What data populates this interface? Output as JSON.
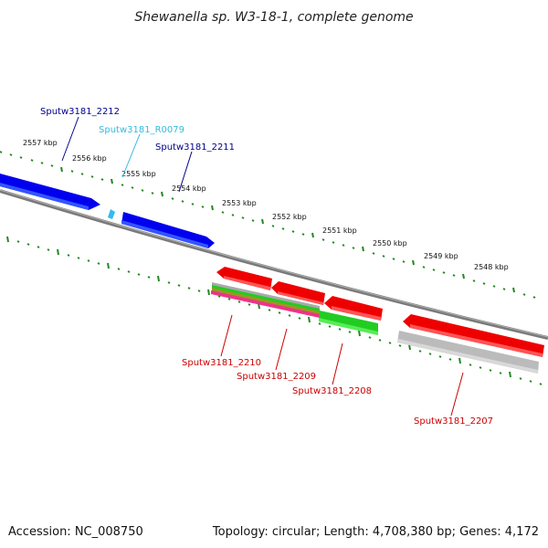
{
  "title": "Shewanella sp. W3-18-1, complete genome",
  "accession_text": "Accession: NC_008750",
  "summary_text": "Topology: circular; Length: 4,708,380 bp; Genes: 4,172",
  "colors": {
    "forward_gene": "#0000ee",
    "forward_rna": "#33bbee",
    "reverse_gene": "#ee0000",
    "reverse_cds": "#22cc22",
    "reverse_other": "#bbbbbb",
    "backbone": "#808080",
    "tick": "#228822",
    "label_forward": "#000088",
    "label_reverse": "#cc0000",
    "label_rna": "#33bbdd"
  },
  "ruler": [
    "2557 kbp",
    "2556 kbp",
    "2555 kbp",
    "2554 kbp",
    "2553 kbp",
    "2552 kbp",
    "2551 kbp",
    "2550 kbp",
    "2549 kbp",
    "2548 kbp"
  ],
  "gene_labels": {
    "g2212": "Sputw3181_2212",
    "r0079": "Sputw3181_R0079",
    "g2211": "Sputw3181_2211",
    "g2210": "Sputw3181_2210",
    "g2209": "Sputw3181_2209",
    "g2208": "Sputw3181_2208",
    "g2207": "Sputw3181_2207"
  }
}
